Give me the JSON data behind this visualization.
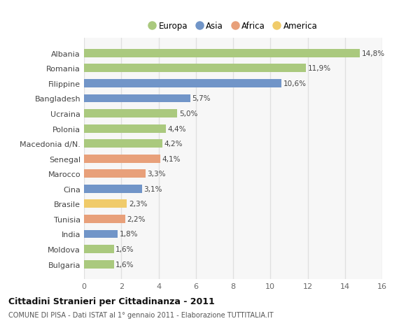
{
  "countries": [
    "Albania",
    "Romania",
    "Filippine",
    "Bangladesh",
    "Ucraina",
    "Polonia",
    "Macedonia d/N.",
    "Senegal",
    "Marocco",
    "Cina",
    "Brasile",
    "Tunisia",
    "India",
    "Moldova",
    "Bulgaria"
  ],
  "values": [
    14.8,
    11.9,
    10.6,
    5.7,
    5.0,
    4.4,
    4.2,
    4.1,
    3.3,
    3.1,
    2.3,
    2.2,
    1.8,
    1.6,
    1.6
  ],
  "labels": [
    "14,8%",
    "11,9%",
    "10,6%",
    "5,7%",
    "5,0%",
    "4,4%",
    "4,2%",
    "4,1%",
    "3,3%",
    "3,1%",
    "2,3%",
    "2,2%",
    "1,8%",
    "1,6%",
    "1,6%"
  ],
  "colors": [
    "#aac97e",
    "#aac97e",
    "#7195c8",
    "#7195c8",
    "#aac97e",
    "#aac97e",
    "#aac97e",
    "#e8a07a",
    "#e8a07a",
    "#7195c8",
    "#f0cb6a",
    "#e8a07a",
    "#7195c8",
    "#aac97e",
    "#aac97e"
  ],
  "legend_labels": [
    "Europa",
    "Asia",
    "Africa",
    "America"
  ],
  "legend_colors": [
    "#aac97e",
    "#7195c8",
    "#e8a07a",
    "#f0cb6a"
  ],
  "title": "Cittadini Stranieri per Cittadinanza - 2011",
  "subtitle": "COMUNE DI PISA - Dati ISTAT al 1° gennaio 2011 - Elaborazione TUTTITALIA.IT",
  "xlim": [
    0,
    16
  ],
  "xticks": [
    0,
    2,
    4,
    6,
    8,
    10,
    12,
    14,
    16
  ],
  "bg_color": "#ffffff",
  "plot_bg_color": "#f7f7f7",
  "grid_color": "#e0e0e0",
  "bar_height": 0.55
}
